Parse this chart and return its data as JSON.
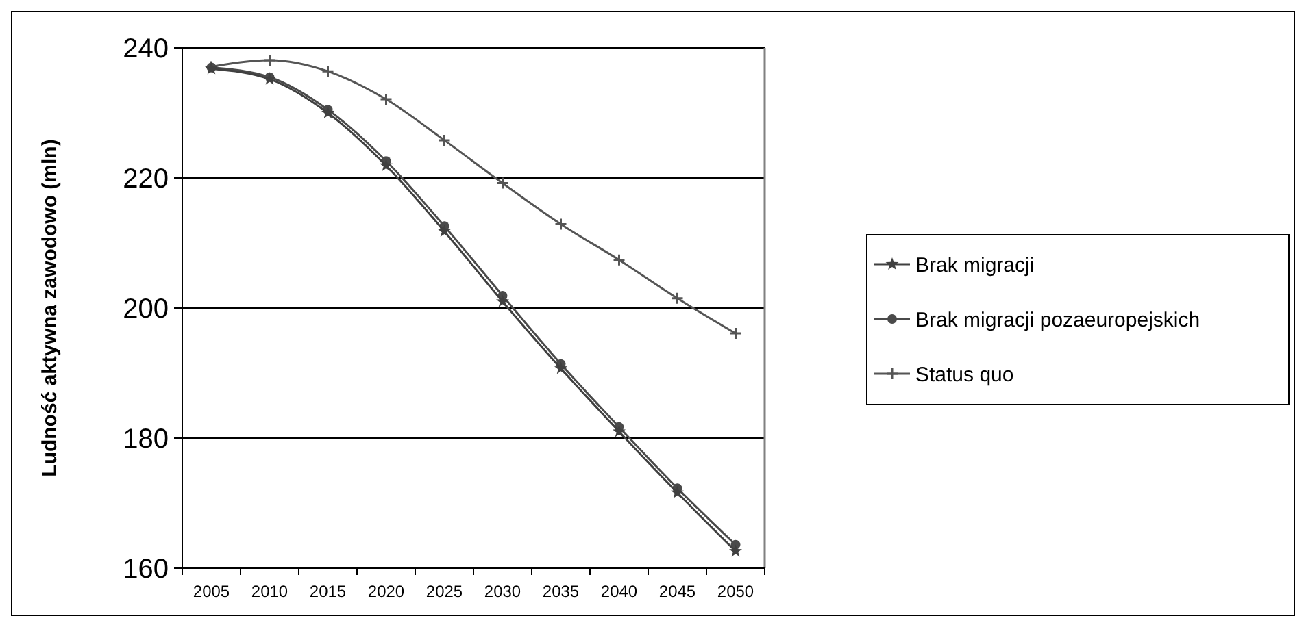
{
  "chart_data": {
    "type": "line",
    "ylabel": "Ludność aktywna zawodowo (mln)",
    "categories": [
      "2005",
      "2010",
      "2015",
      "2020",
      "2025",
      "2030",
      "2035",
      "2040",
      "2045",
      "2050"
    ],
    "ylim": [
      160,
      240
    ],
    "yticks": [
      160,
      180,
      200,
      220,
      240
    ],
    "grid": "y",
    "legend": "right",
    "line_style": "solid",
    "series": [
      {
        "name": "Brak migracji",
        "color": "#404040",
        "marker": "star",
        "values": [
          236.8,
          235.2,
          230.0,
          221.9,
          211.8,
          201.0,
          190.7,
          181.0,
          171.6,
          162.6
        ]
      },
      {
        "name": "Brak migracji pozaeuropejskich",
        "color": "#4a4a4a",
        "marker": "circle",
        "values": [
          237,
          235.5,
          230.5,
          222.6,
          212.6,
          201.9,
          191.4,
          181.7,
          172.3,
          163.6
        ]
      },
      {
        "name": "Status quo",
        "color": "#555555",
        "marker": "cross",
        "values": [
          237.1,
          238.1,
          236.4,
          232.1,
          225.8,
          219.2,
          212.9,
          207.4,
          201.5,
          196.1
        ]
      }
    ]
  }
}
